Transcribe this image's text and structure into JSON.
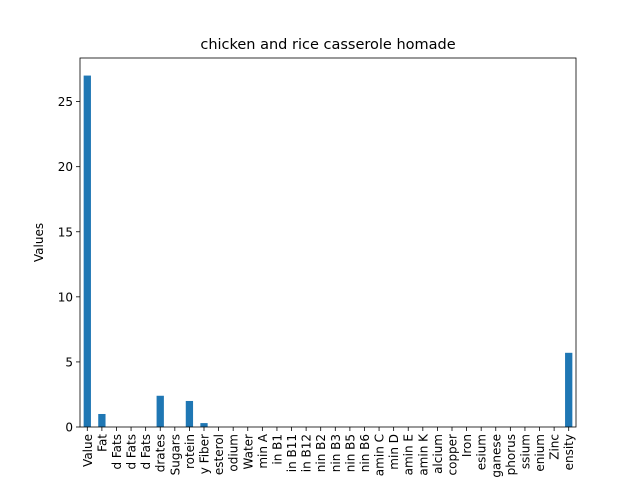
{
  "chart_data": {
    "type": "bar",
    "title": "chicken and rice casserole homade",
    "xlabel": "",
    "ylabel": "Values",
    "ylim": [
      0,
      28.35
    ],
    "yticks": [
      0,
      5,
      10,
      15,
      20,
      25
    ],
    "grid": false,
    "legend": "none",
    "bar_color": "#1f77b4",
    "categories": [
      "Value",
      "Fat",
      "d Fats",
      "d Fats",
      "d Fats",
      "drates",
      "Sugars",
      "rotein",
      "y Fiber",
      "esterol",
      "odium",
      "Water",
      "min A",
      "in B1",
      "in B11",
      "in B12",
      "nin B2",
      "nin B3",
      "nin B5",
      "nin B6",
      "amin C",
      "min D",
      "amin E",
      "amin K",
      "alcium",
      "copper",
      "Iron",
      "esium",
      "ganese",
      "phorus",
      "ssium",
      "enium",
      "Zinc",
      "ensity"
    ],
    "values": [
      27.0,
      1.0,
      0.0,
      0.0,
      0.0,
      2.4,
      0.0,
      2.0,
      0.3,
      0.0,
      0.0,
      0.0,
      0.0,
      0.0,
      0.0,
      0.0,
      0.0,
      0.0,
      0.0,
      0.0,
      0.0,
      0.0,
      0.0,
      0.0,
      0.0,
      0.0,
      0.0,
      0.0,
      0.0,
      0.0,
      0.0,
      0.0,
      0.0,
      5.7
    ]
  }
}
